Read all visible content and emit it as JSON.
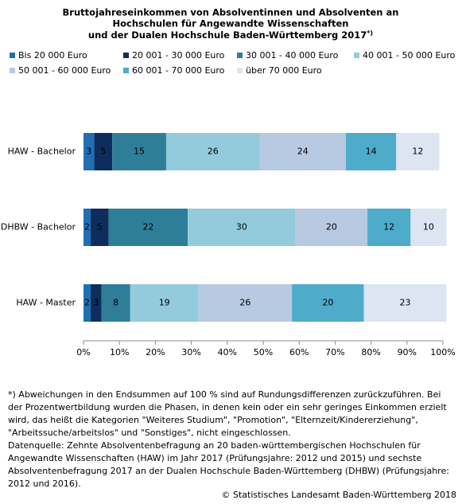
{
  "chart_data": {
    "type": "stacked-bar-horizontal",
    "title": [
      "Bruttojahreseinkommen von Absolventinnen und Absolventen an",
      "Hochschulen für Angewandte Wissenschaften",
      "und der Dualen Hochschule Baden-Württemberg 2017"
    ],
    "title_note": "*)",
    "categories": [
      "HAW - Bachelor",
      "DHBW - Bachelor",
      "HAW - Master"
    ],
    "series": [
      {
        "name": "Bis 20 000 Euro",
        "color": "#1f6fb2",
        "values": [
          3,
          2,
          2
        ]
      },
      {
        "name": "20 001 - 30 000 Euro",
        "color": "#0e2d5c",
        "values": [
          5,
          5,
          3
        ]
      },
      {
        "name": "30 001 - 40 000 Euro",
        "color": "#2f7e98",
        "values": [
          15,
          22,
          8
        ]
      },
      {
        "name": "40 001 - 50 000 Euro",
        "color": "#93cbdc",
        "values": [
          26,
          30,
          19
        ]
      },
      {
        "name": "50 001 - 60 000 Euro",
        "color": "#b8c9e2",
        "values": [
          24,
          20,
          26
        ]
      },
      {
        "name": "60 001 - 70 000 Euro",
        "color": "#4eabc9",
        "values": [
          14,
          12,
          20
        ]
      },
      {
        "name": "über 70 000 Euro",
        "color": "#dce5f1",
        "values": [
          12,
          10,
          23
        ]
      }
    ],
    "xlim": [
      0,
      100
    ],
    "xticks": [
      {
        "value": 0,
        "label": "0%"
      },
      {
        "value": 10,
        "label": "10%"
      },
      {
        "value": 20,
        "label": "20%"
      },
      {
        "value": 30,
        "label": "30%"
      },
      {
        "value": 40,
        "label": "40%"
      },
      {
        "value": 50,
        "label": "50%"
      },
      {
        "value": 60,
        "label": "60%"
      },
      {
        "value": 70,
        "label": "70%"
      },
      {
        "value": 80,
        "label": "80%"
      },
      {
        "value": 90,
        "label": "90%"
      },
      {
        "value": 100,
        "label": "100%"
      }
    ],
    "grid": false,
    "footnote": [
      "*) Abweichungen in den Endsummen auf 100 % sind auf Rundungsdifferenzen zurückzuführen. Bei",
      "der Prozentwertbildung wurden die Phasen, in denen kein oder ein sehr geringes Einkommen erzielt",
      "wird, das heißt die Kategorien \"Weiteres Studium\", \"Promotion\", \"Elternzeit/Kindererziehung\",",
      "\"Arbeitssuche/arbeitslos\" und \"Sonstiges\", nicht eingeschlossen.",
      "Datenquelle: Zehnte Absolventenbefragung an 20 baden-württembergischen Hochschulen für",
      "Angewandte  Wissenschaften (HAW) im Jahr 2017 (Prüfungsjahre: 2012 und 2015) und sechste",
      "Absolventenbefragung 2017 an der Dualen Hochschule Baden-Württemberg (DHBW) (Prüfungsjahre:",
      "2012 und 2016)."
    ],
    "source": "© Statistisches Landesamt Baden-Württemberg 2018"
  }
}
